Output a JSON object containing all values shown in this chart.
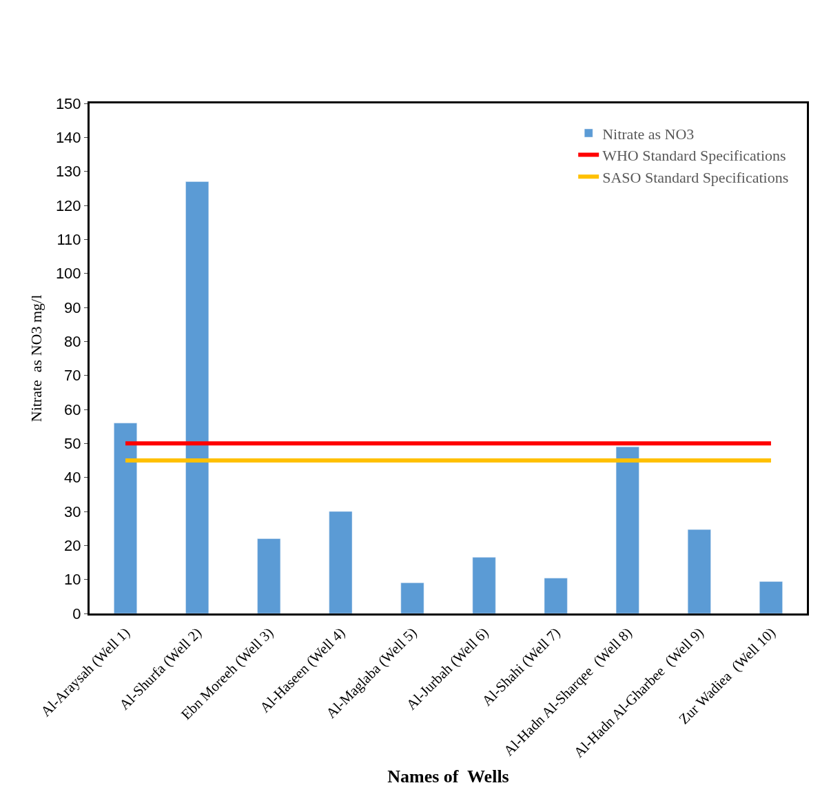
{
  "chart_data": {
    "type": "bar",
    "xlabel": "Names of  Wells",
    "ylabel": "Nitrate  as NO3 mg/l",
    "categories": [
      "Al-Araysah (Well 1)",
      "Al-Shurfa (Well 2)",
      "Ebn Moreeh (Well 3)",
      "Al-Haseen (Well 4)",
      "Al-Maglaba (Well 5)",
      "Al-Jurbah (Well 6)",
      "Al-Shahi (Well 7)",
      "Al-Hadn Al-Sharqee  (Well 8)",
      "Al-Hadn Al-Gharbee  (Well 9)",
      "Zur Wadiea  (Well 10)"
    ],
    "series": [
      {
        "name": "Nitrate as NO3",
        "color": "#5b9bd5",
        "values": [
          56,
          127,
          22,
          30,
          9,
          16.5,
          10.4,
          49,
          24.7,
          9.4
        ]
      }
    ],
    "ref_lines": [
      {
        "axis": "y",
        "value": 50,
        "label": "WHO Standard Specifications",
        "color": "#ff0000"
      },
      {
        "axis": "y",
        "value": 45,
        "label": "SASO Standard Specifications",
        "color": "#ffc000"
      }
    ],
    "ylim": [
      0,
      150
    ],
    "yticks": [
      0,
      10,
      20,
      30,
      40,
      50,
      60,
      70,
      80,
      90,
      100,
      110,
      120,
      130,
      140,
      150
    ],
    "legend": "top right"
  }
}
